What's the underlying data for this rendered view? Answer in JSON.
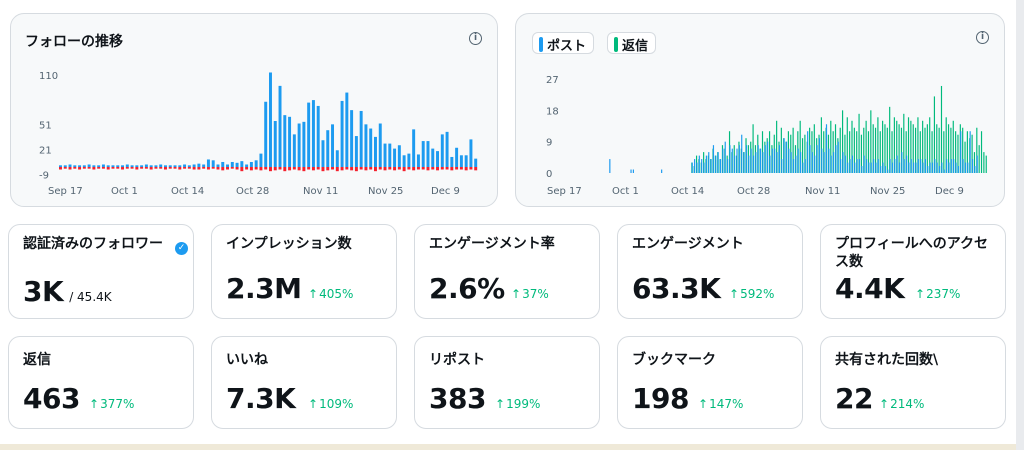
{
  "followers_chart": {
    "title": "フォローの推移",
    "info_icon": "info-icon",
    "y_ticks": [
      "110",
      "51",
      "21",
      "-9"
    ],
    "x_ticks": [
      "Sep 17",
      "Oct 1",
      "Oct 14",
      "Oct 28",
      "Nov 11",
      "Nov 25",
      "Dec 9"
    ],
    "colors": {
      "gain": "#1d9bf0",
      "loss": "#f4212e"
    }
  },
  "posts_chart": {
    "info_icon": "info-icon",
    "legend": [
      {
        "label": "ポスト",
        "color": "#1d9bf0"
      },
      {
        "label": "返信",
        "color": "#00ba7c"
      }
    ],
    "y_ticks": [
      "27",
      "18",
      "9",
      "0"
    ],
    "x_ticks": [
      "Sep 17",
      "Oct 1",
      "Oct 14",
      "Oct 28",
      "Nov 11",
      "Nov 25",
      "Dec 9"
    ]
  },
  "chart_data": [
    {
      "type": "bar",
      "x_start": "Sep 17",
      "ylim": [
        -9,
        115
      ],
      "grid": false,
      "series": [
        {
          "name": "",
          "color": "#1d9bf0",
          "values": [
            2,
            2,
            3,
            2,
            2,
            2,
            3,
            2,
            2,
            3,
            2,
            2,
            2,
            2,
            3,
            2,
            2,
            2,
            3,
            2,
            2,
            3,
            2,
            2,
            2,
            2,
            3,
            2,
            3,
            4,
            3,
            9,
            8,
            3,
            6,
            3,
            6,
            5,
            7,
            3,
            6,
            8,
            16,
            78,
            113,
            55,
            97,
            62,
            60,
            39,
            52,
            54,
            77,
            80,
            73,
            32,
            44,
            51,
            20,
            79,
            89,
            68,
            37,
            67,
            51,
            46,
            36,
            52,
            28,
            28,
            22,
            26,
            14,
            16,
            45,
            15,
            31,
            31,
            22,
            19,
            39,
            42,
            12,
            23,
            14,
            14,
            33,
            10
          ],
          "values_note": "daily follow gains (approximate, one bar per day)"
        },
        {
          "name": "",
          "color": "#f4212e",
          "values": [
            -3,
            -2,
            -3,
            -2,
            -3,
            -2,
            -2,
            -3,
            -2,
            -2,
            -3,
            -2,
            -2,
            -3,
            -2,
            -2,
            -3,
            -2,
            -2,
            -3,
            -2,
            -2,
            -3,
            -2,
            -2,
            -3,
            -2,
            -2,
            -3,
            -3,
            -2,
            -3,
            -2,
            -3,
            -4,
            -3,
            -2,
            -3,
            -5,
            -3,
            -4,
            -3,
            -4,
            -3,
            -5,
            -4,
            -3,
            -5,
            -4,
            -3,
            -4,
            -5,
            -3,
            -4,
            -3,
            -5,
            -4,
            -3,
            -5,
            -4,
            -3,
            -4,
            -5,
            -3,
            -4,
            -3,
            -5,
            -3,
            -4,
            -3,
            -4,
            -3,
            -5,
            -3,
            -4,
            -3,
            -3,
            -4,
            -3,
            -4,
            -3,
            -3,
            -4,
            -3,
            -3,
            -4,
            -3,
            -4
          ],
          "values_note": "daily unfollows (approximate)"
        }
      ]
    },
    {
      "type": "bar",
      "x_start": "Sep 17",
      "ylim": [
        0,
        27
      ],
      "grid": false,
      "series": [
        {
          "name": "ポスト",
          "color": "#1d9bf0",
          "values": [
            0,
            0,
            0,
            0,
            0,
            0,
            0,
            0,
            4,
            0,
            0,
            0,
            0,
            0,
            0,
            0,
            0,
            1,
            1,
            0,
            0,
            0,
            0,
            0,
            0,
            0,
            0,
            0,
            0,
            0,
            1,
            0,
            0,
            0,
            0,
            0,
            0,
            0,
            0,
            0,
            0,
            0,
            0,
            3,
            4,
            3,
            5,
            4,
            3,
            5,
            6,
            4,
            8,
            5,
            6,
            4,
            7,
            9,
            4,
            8,
            7,
            5,
            7,
            8,
            11,
            6,
            8,
            5,
            7,
            5,
            6,
            8,
            7,
            6,
            8,
            9,
            5,
            7,
            7,
            6,
            8,
            4,
            10,
            9,
            7,
            6,
            4,
            5,
            7,
            6,
            3,
            4,
            12,
            8,
            6,
            5,
            8,
            10,
            7,
            6,
            14,
            7,
            5,
            6,
            8,
            9,
            4,
            6,
            5,
            3,
            4,
            5,
            3,
            4,
            4,
            2,
            5,
            4,
            3,
            3,
            4,
            3,
            4,
            2,
            3,
            2,
            1,
            4,
            3,
            4,
            5,
            3,
            6,
            4,
            5,
            3,
            4,
            3,
            3,
            4,
            4,
            3,
            4,
            2,
            3,
            3,
            4,
            3,
            2,
            3,
            1,
            4,
            3,
            4,
            4,
            3,
            2,
            12,
            4,
            3,
            3,
            12,
            4,
            2,
            5
          ],
          "values_note": "approximate"
        },
        {
          "name": "返信",
          "color": "#00ba7c",
          "values": [
            0,
            0,
            0,
            0,
            0,
            0,
            0,
            0,
            0,
            0,
            0,
            0,
            0,
            0,
            0,
            0,
            0,
            0,
            0,
            0,
            0,
            0,
            0,
            0,
            0,
            0,
            0,
            0,
            0,
            0,
            0,
            0,
            0,
            0,
            0,
            0,
            0,
            0,
            0,
            0,
            0,
            0,
            0,
            3,
            2,
            5,
            4,
            3,
            6,
            4,
            5,
            4,
            7,
            5,
            6,
            4,
            8,
            7,
            5,
            12,
            6,
            8,
            5,
            9,
            7,
            6,
            10,
            8,
            9,
            14,
            8,
            11,
            7,
            12,
            9,
            10,
            12,
            8,
            11,
            15,
            9,
            13,
            10,
            9,
            12,
            11,
            13,
            8,
            12,
            15,
            10,
            11,
            9,
            13,
            12,
            14,
            10,
            11,
            16,
            12,
            13,
            11,
            15,
            12,
            14,
            10,
            13,
            18,
            11,
            16,
            12,
            15,
            13,
            12,
            17,
            11,
            13,
            15,
            12,
            18,
            14,
            13,
            16,
            12,
            15,
            14,
            13,
            19,
            12,
            16,
            15,
            14,
            13,
            17,
            12,
            16,
            15,
            14,
            13,
            16,
            12,
            15,
            13,
            14,
            16,
            12,
            22,
            14,
            13,
            25,
            12,
            16,
            14,
            13,
            15,
            12,
            11,
            14,
            13,
            9,
            12,
            10,
            11,
            6,
            13,
            8,
            12,
            6,
            5
          ],
          "values_note": "approximate"
        }
      ]
    }
  ],
  "cards": [
    {
      "label": "認証済みのフォロワー",
      "value": "3K",
      "sub": "/ 45.4K",
      "change": "",
      "verified_icon": "verified-badge-icon"
    },
    {
      "label": "インプレッション数",
      "value": "2.3M",
      "change": "405%",
      "arrow_icon": "arrow-up-icon"
    },
    {
      "label": "エンゲージメント率",
      "value": "2.6%",
      "change": "37%",
      "arrow_icon": "arrow-up-icon"
    },
    {
      "label": "エンゲージメント",
      "value": "63.3K",
      "change": "592%",
      "arrow_icon": "arrow-up-icon"
    },
    {
      "label": "プロフィールへのアクセス数",
      "value": "4.4K",
      "change": "237%",
      "arrow_icon": "arrow-up-icon"
    },
    {
      "label": "返信",
      "value": "463",
      "change": "377%",
      "arrow_icon": "arrow-up-icon"
    },
    {
      "label": "いいね",
      "value": "7.3K",
      "change": "109%",
      "arrow_icon": "arrow-up-icon"
    },
    {
      "label": "リポスト",
      "value": "383",
      "change": "199%",
      "arrow_icon": "arrow-up-icon"
    },
    {
      "label": "ブックマーク",
      "value": "198",
      "change": "147%",
      "arrow_icon": "arrow-up-icon"
    },
    {
      "label": "共有された回数\\",
      "value": "22",
      "change": "214%",
      "arrow_icon": "arrow-up-icon"
    }
  ]
}
